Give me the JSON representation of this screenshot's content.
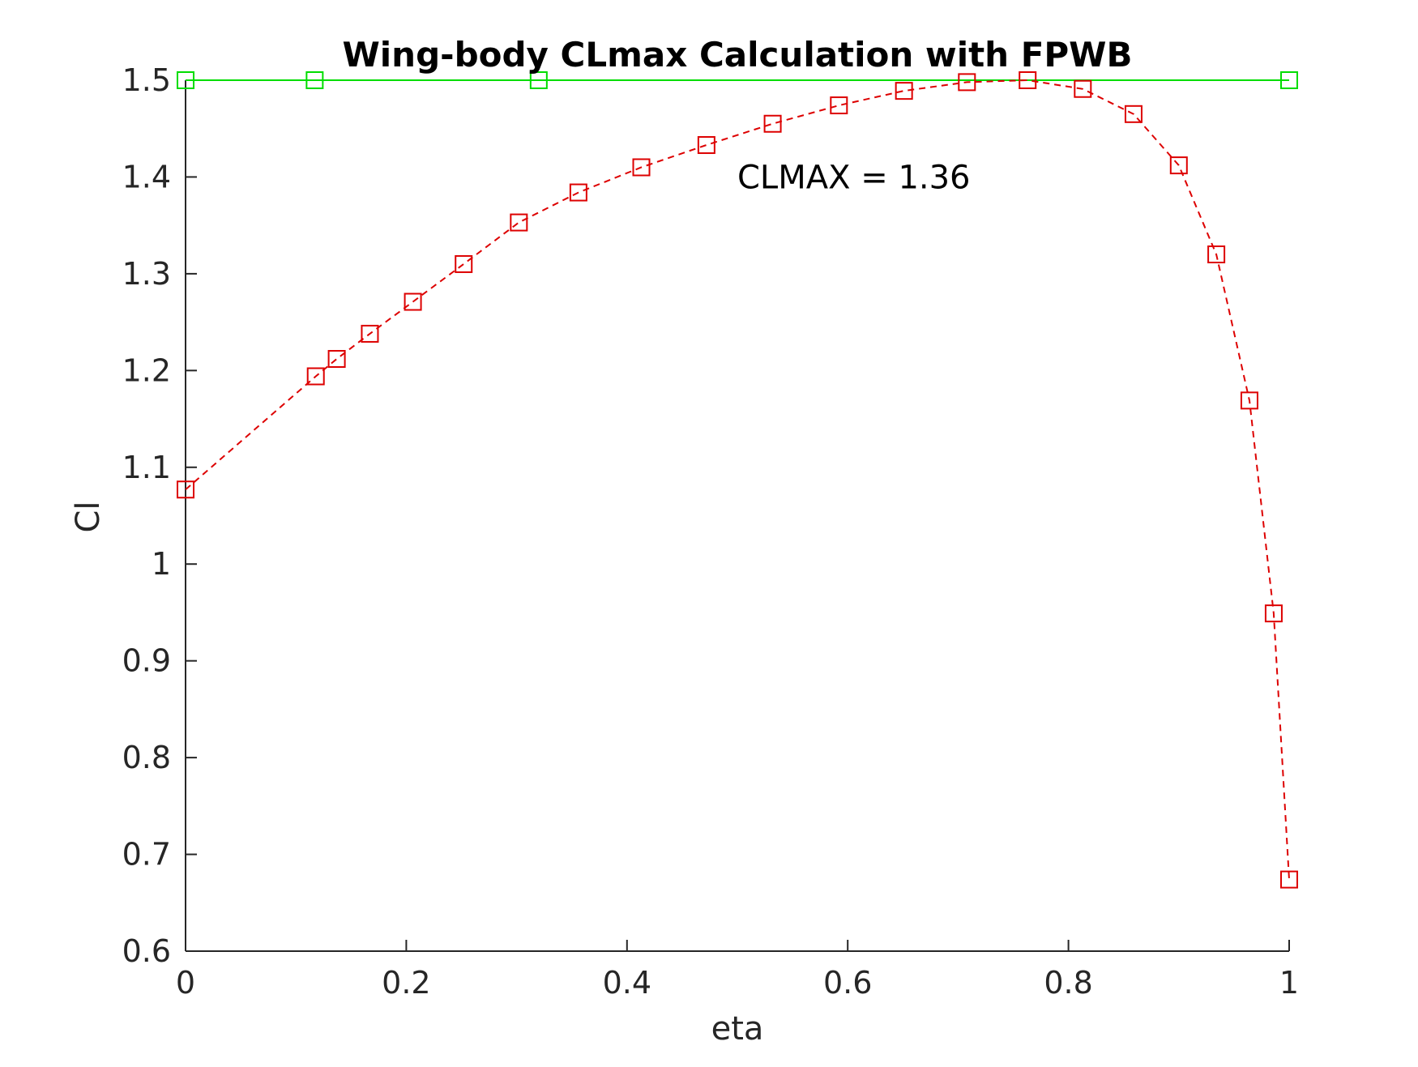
{
  "chart_data": {
    "type": "line",
    "title": "Wing-body CLmax Calculation with FPWB",
    "xlabel": "eta",
    "ylabel": "Cl",
    "xlim": [
      0,
      1
    ],
    "ylim": [
      0.6,
      1.5
    ],
    "xticks": [
      0,
      0.2,
      0.4,
      0.6,
      0.8,
      1
    ],
    "yticks": [
      0.6,
      0.7,
      0.8,
      0.9,
      1,
      1.1,
      1.2,
      1.3,
      1.4,
      1.5
    ],
    "xtick_labels": [
      "0",
      "0.2",
      "0.4",
      "0.6",
      "0.8",
      "1"
    ],
    "ytick_labels": [
      "0.6",
      "0.7",
      "0.8",
      "0.9",
      "1",
      "1.1",
      "1.2",
      "1.3",
      "1.4",
      "1.5"
    ],
    "grid": false,
    "annotation": "CLMAX = 1.36",
    "annotation_at": {
      "x": 0.5,
      "y": 1.4
    },
    "series": [
      {
        "color": "#00dd00",
        "line_style": "solid",
        "marker": "square",
        "x": [
          0,
          0.117,
          0.32,
          1.0
        ],
        "y": [
          1.5,
          1.5,
          1.5,
          1.5
        ]
      },
      {
        "color": "#dd0000",
        "line_style": "dashed",
        "marker": "square",
        "x": [
          0,
          0.118,
          0.137,
          0.167,
          0.206,
          0.252,
          0.302,
          0.356,
          0.413,
          0.472,
          0.532,
          0.592,
          0.651,
          0.708,
          0.763,
          0.813,
          0.859,
          0.9,
          0.934,
          0.964,
          0.986,
          1.0
        ],
        "y": [
          1.077,
          1.194,
          1.212,
          1.238,
          1.271,
          1.31,
          1.353,
          1.384,
          1.41,
          1.433,
          1.455,
          1.474,
          1.489,
          1.498,
          1.5,
          1.491,
          1.465,
          1.412,
          1.32,
          1.169,
          0.949,
          0.674
        ]
      }
    ]
  }
}
